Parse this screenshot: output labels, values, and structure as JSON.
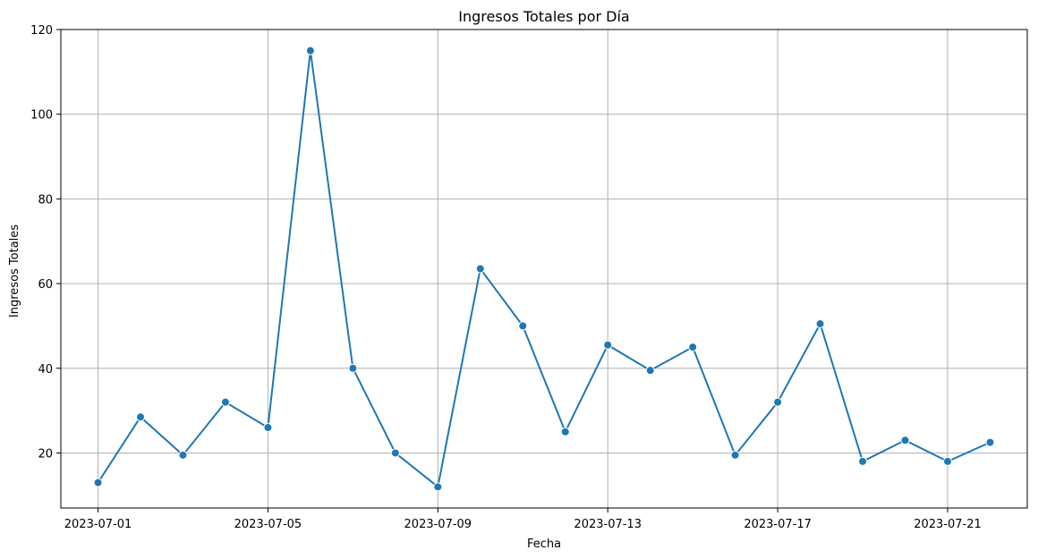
{
  "chart_data": {
    "type": "line",
    "title": "Ingresos Totales por Día",
    "xlabel": "Fecha",
    "ylabel": "Ingresos Totales",
    "x": [
      "2023-07-01",
      "2023-07-02",
      "2023-07-03",
      "2023-07-04",
      "2023-07-05",
      "2023-07-06",
      "2023-07-07",
      "2023-07-08",
      "2023-07-09",
      "2023-07-10",
      "2023-07-11",
      "2023-07-12",
      "2023-07-13",
      "2023-07-14",
      "2023-07-15",
      "2023-07-16",
      "2023-07-17",
      "2023-07-18",
      "2023-07-19",
      "2023-07-20",
      "2023-07-21",
      "2023-07-22"
    ],
    "values": [
      13,
      28.5,
      19.5,
      32,
      26,
      115,
      40,
      20,
      12,
      63.5,
      50,
      25,
      45.5,
      39.5,
      45,
      19.5,
      32,
      50.5,
      18,
      23,
      18,
      22.5
    ],
    "x_ticks": [
      "2023-07-01",
      "2023-07-05",
      "2023-07-09",
      "2023-07-13",
      "2023-07-17",
      "2023-07-21"
    ],
    "y_ticks": [
      20,
      40,
      60,
      80,
      100,
      120
    ],
    "ylim": [
      7,
      120
    ],
    "xlim": [
      "2023-06-30T03:00",
      "2023-07-22T21:00"
    ],
    "grid": true,
    "marker": "circle",
    "color": "#1f77b4"
  }
}
